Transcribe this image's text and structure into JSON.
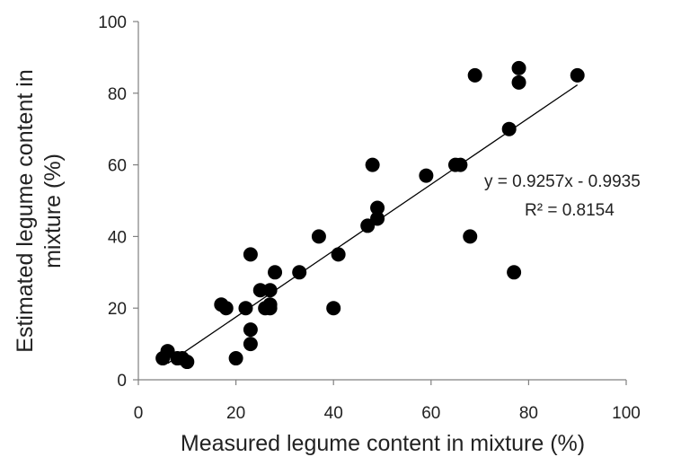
{
  "chart_data": {
    "type": "scatter",
    "xlabel": "Measured legume content in mixture (%)",
    "ylabel_lines": [
      "Estimated legume content in",
      "mixture (%)"
    ],
    "xlim": [
      0,
      100
    ],
    "ylim": [
      0,
      100
    ],
    "xticks": [
      "0",
      "20",
      "40",
      "60",
      "80",
      "100"
    ],
    "yticks": [
      "0",
      "20",
      "40",
      "60",
      "80",
      "100"
    ],
    "grid": false,
    "legend": "none",
    "marker_color": "#000000",
    "x": [
      5,
      6,
      8,
      9,
      10,
      17,
      18,
      20,
      22,
      23,
      23,
      23,
      25,
      26,
      27,
      27,
      27,
      28,
      33,
      37,
      40,
      41,
      47,
      48,
      49,
      49,
      59,
      65,
      66,
      68,
      69,
      76,
      77,
      78,
      78,
      90
    ],
    "y": [
      6,
      8,
      6,
      6,
      5,
      21,
      20,
      6,
      20,
      35,
      14,
      10,
      25,
      20,
      20,
      21,
      25,
      30,
      30,
      40,
      20,
      35,
      43,
      60,
      45,
      48,
      57,
      60,
      60,
      40,
      85,
      70,
      30,
      83,
      87,
      85
    ],
    "trendline": {
      "type": "linear",
      "slope": 0.9257,
      "intercept": -0.9935,
      "x_range": [
        6,
        90
      ],
      "equation_label": "y = 0.9257x - 0.9935",
      "r2_label": "R² = 0.8154"
    }
  }
}
